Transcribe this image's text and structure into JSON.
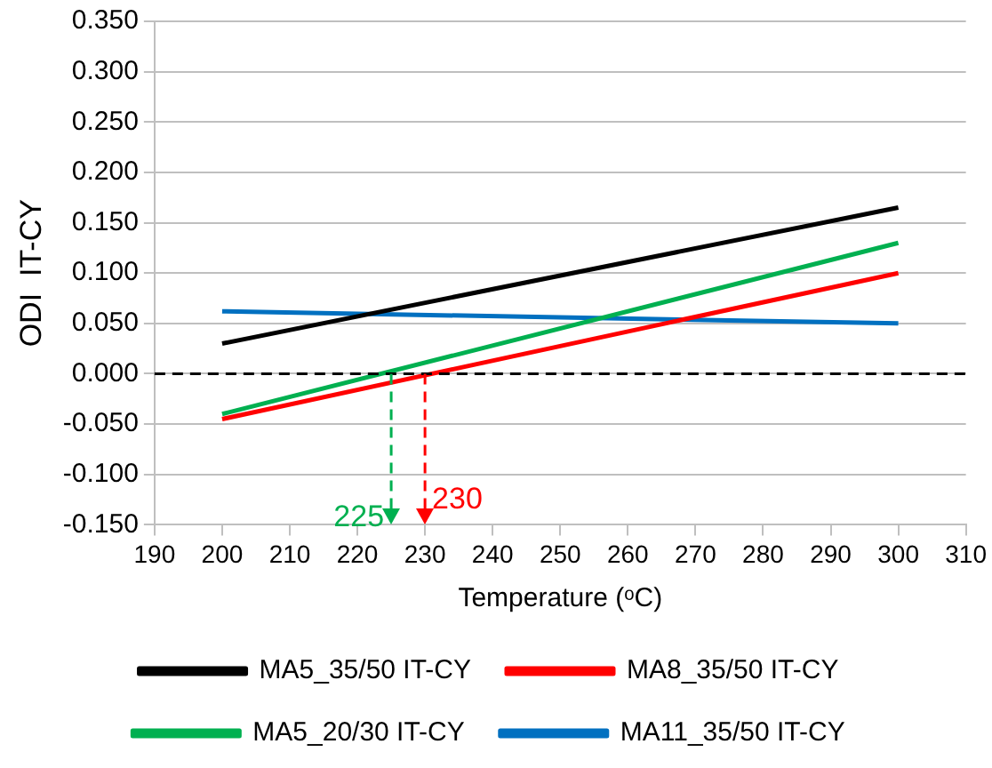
{
  "chart_data": {
    "type": "line",
    "xlabel": "Temperature (ᵒC)",
    "ylabel": "ODI  IT-CY",
    "x": [
      200,
      300
    ],
    "series": [
      {
        "name": "MA5_35/50 IT-CY",
        "color": "#000000",
        "values": [
          0.03,
          0.165
        ]
      },
      {
        "name": "MA8_35/50 IT-CY",
        "color": "#ff0000",
        "values": [
          -0.045,
          0.1
        ]
      },
      {
        "name": "MA5_20/30 IT-CY",
        "color": "#00b050",
        "values": [
          -0.04,
          0.13
        ]
      },
      {
        "name": "MA11_35/50 IT-CY",
        "color": "#0070c0",
        "values": [
          0.062,
          0.05
        ]
      }
    ],
    "xlim": [
      190,
      310
    ],
    "xticks": [
      190,
      200,
      210,
      220,
      230,
      240,
      250,
      260,
      270,
      280,
      290,
      300,
      310
    ],
    "ylim": [
      -0.15,
      0.35
    ],
    "yticks": [
      {
        "value": -0.15,
        "label": "-0.150"
      },
      {
        "value": -0.1,
        "label": "-0.100"
      },
      {
        "value": -0.05,
        "label": "-0.050"
      },
      {
        "value": 0,
        "label": "0.000"
      },
      {
        "value": 0.05,
        "label": "0.050"
      },
      {
        "value": 0.1,
        "label": "0.100"
      },
      {
        "value": 0.15,
        "label": "0.150"
      },
      {
        "value": 0.2,
        "label": "0.200"
      },
      {
        "value": 0.25,
        "label": "0.250"
      },
      {
        "value": 0.3,
        "label": "0.300"
      },
      {
        "value": 0.35,
        "label": "0.350"
      }
    ],
    "ref_lines": [
      {
        "axis": "y",
        "value": 0,
        "color": "#000000",
        "line_style": "dashed"
      },
      {
        "axis": "x",
        "value": 225,
        "label": "225",
        "color": "#00b050",
        "line_style": "dashed"
      },
      {
        "axis": "x",
        "value": 230,
        "label": "230",
        "color": "#ff0000",
        "line_style": "dashed"
      }
    ],
    "grid": "y",
    "legend": "bottom",
    "marker": "none",
    "line_style": "solid"
  }
}
